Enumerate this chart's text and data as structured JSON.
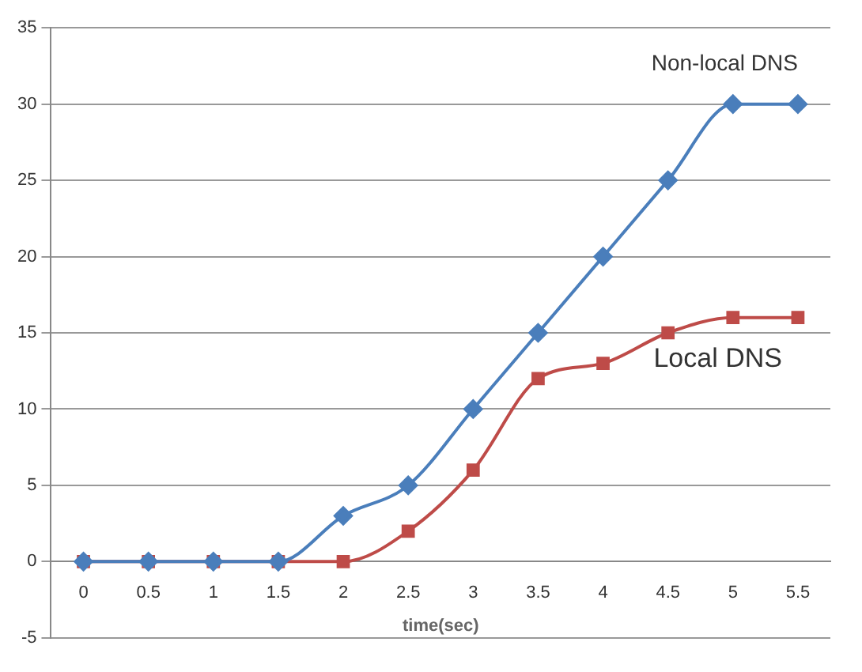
{
  "chart_data": {
    "type": "line",
    "xlabel": "time(sec)",
    "categories": [
      "0",
      "0.5",
      "1",
      "1.5",
      "2",
      "2.5",
      "3",
      "3.5",
      "4",
      "4.5",
      "5",
      "5.5"
    ],
    "series": [
      {
        "name": "Non-local DNS",
        "color": "#4a7ebb",
        "marker": "diamond",
        "values": [
          0,
          0,
          0,
          0,
          3,
          5,
          10,
          15,
          20,
          25,
          30,
          30
        ]
      },
      {
        "name": "Local DNS",
        "color": "#be4b48",
        "marker": "square",
        "values": [
          0,
          0,
          0,
          0,
          0,
          2,
          6,
          12,
          13,
          15,
          16,
          16
        ]
      }
    ],
    "ylim": [
      -5,
      35
    ],
    "yticks": [
      -5,
      0,
      5,
      10,
      15,
      20,
      25,
      30,
      35
    ],
    "grid": "y",
    "legend": false
  }
}
